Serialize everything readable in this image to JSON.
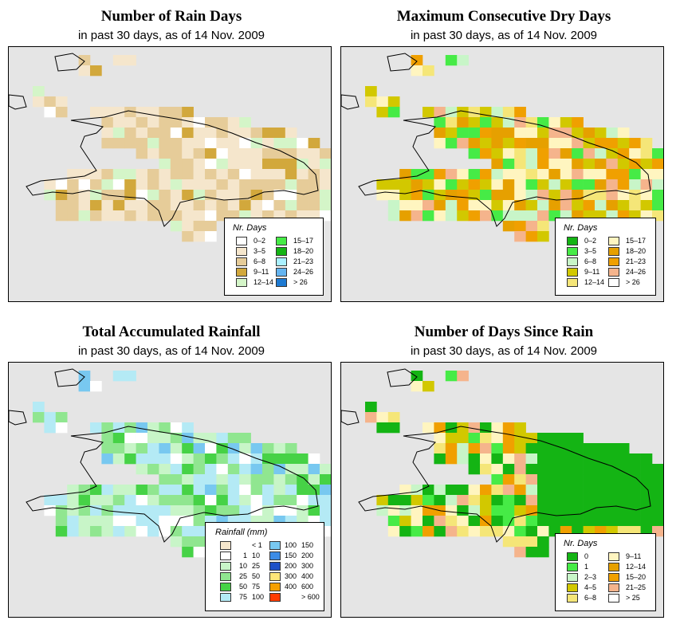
{
  "panels": [
    {
      "title": "Number of Rain Days",
      "subtitle": "in past 30 days, as of  14 Nov. 2009",
      "legend": {
        "title": "Nr. Days",
        "items": [
          {
            "label": "0–2",
            "color": "#ffffff"
          },
          {
            "label": "3–5",
            "color": "#f5e6cc"
          },
          {
            "label": "6–8",
            "color": "#e6cc99"
          },
          {
            "label": "9–11",
            "color": "#d2a83c"
          },
          {
            "label": "12–14",
            "color": "#d4f5c8"
          },
          {
            "label": "15–17",
            "color": "#46eb46"
          },
          {
            "label": "18–20",
            "color": "#14b414"
          },
          {
            "label": "21–23",
            "color": "#aaf0ff"
          },
          {
            "label": "24–26",
            "color": "#64b4f0"
          },
          {
            "label": "> 26",
            "color": "#1e7ad2"
          }
        ]
      }
    },
    {
      "title": "Maximum Consecutive Dry Days",
      "subtitle": "in past 30 days, as of  14 Nov. 2009",
      "legend": {
        "title": "Nr. Days",
        "items": [
          {
            "label": "0–2",
            "color": "#14b414"
          },
          {
            "label": "3–5",
            "color": "#46eb46"
          },
          {
            "label": "6–8",
            "color": "#c8f5c8"
          },
          {
            "label": "9–11",
            "color": "#d2c800"
          },
          {
            "label": "12–14",
            "color": "#f5e678"
          },
          {
            "label": "15–17",
            "color": "#fff5c0"
          },
          {
            "label": "18–20",
            "color": "#e6a000"
          },
          {
            "label": "21–23",
            "color": "#f0a000"
          },
          {
            "label": "24–26",
            "color": "#f5b48c"
          },
          {
            "label": "> 26",
            "color": "#ffffff"
          }
        ]
      }
    },
    {
      "title": "Total Accumulated Rainfall",
      "subtitle": "in past 30 days, as of  14 Nov. 2009",
      "legend": {
        "title": "Rainfall (mm)",
        "items": [
          {
            "from": "",
            "to": "< 1",
            "color": "#f5e6cc"
          },
          {
            "from": "1",
            "to": "10",
            "color": "#ffffff"
          },
          {
            "from": "10",
            "to": "25",
            "color": "#c8f5c8"
          },
          {
            "from": "25",
            "to": "50",
            "color": "#90e690"
          },
          {
            "from": "50",
            "to": "75",
            "color": "#46d246"
          },
          {
            "from": "75",
            "to": "100",
            "color": "#b4eaf5"
          },
          {
            "from": "100",
            "to": "150",
            "color": "#78c8f0"
          },
          {
            "from": "150",
            "to": "200",
            "color": "#3c8ce6"
          },
          {
            "from": "200",
            "to": "300",
            "color": "#1e50c8"
          },
          {
            "from": "300",
            "to": "400",
            "color": "#ffe678"
          },
          {
            "from": "400",
            "to": "600",
            "color": "#f5a000"
          },
          {
            "from": "",
            "to": "> 600",
            "color": "#ff3c00"
          }
        ]
      }
    },
    {
      "title": "Number of Days Since Rain",
      "subtitle": "in past 30 days, as of  14 Nov. 2009",
      "legend": {
        "title": "Nr. Days",
        "items": [
          {
            "label": "0",
            "color": "#14b414"
          },
          {
            "label": "1",
            "color": "#46eb46"
          },
          {
            "label": "2–3",
            "color": "#c8f5c8"
          },
          {
            "label": "4–5",
            "color": "#d2c800"
          },
          {
            "label": "6–8",
            "color": "#f5e678"
          },
          {
            "label": "9–11",
            "color": "#fff5c0"
          },
          {
            "label": "12–14",
            "color": "#e6a000"
          },
          {
            "label": "15–20",
            "color": "#f0a000"
          },
          {
            "label": "21–25",
            "color": "#f5b48c"
          },
          {
            "label": "> 25",
            "color": "#ffffff"
          }
        ]
      }
    }
  ]
}
